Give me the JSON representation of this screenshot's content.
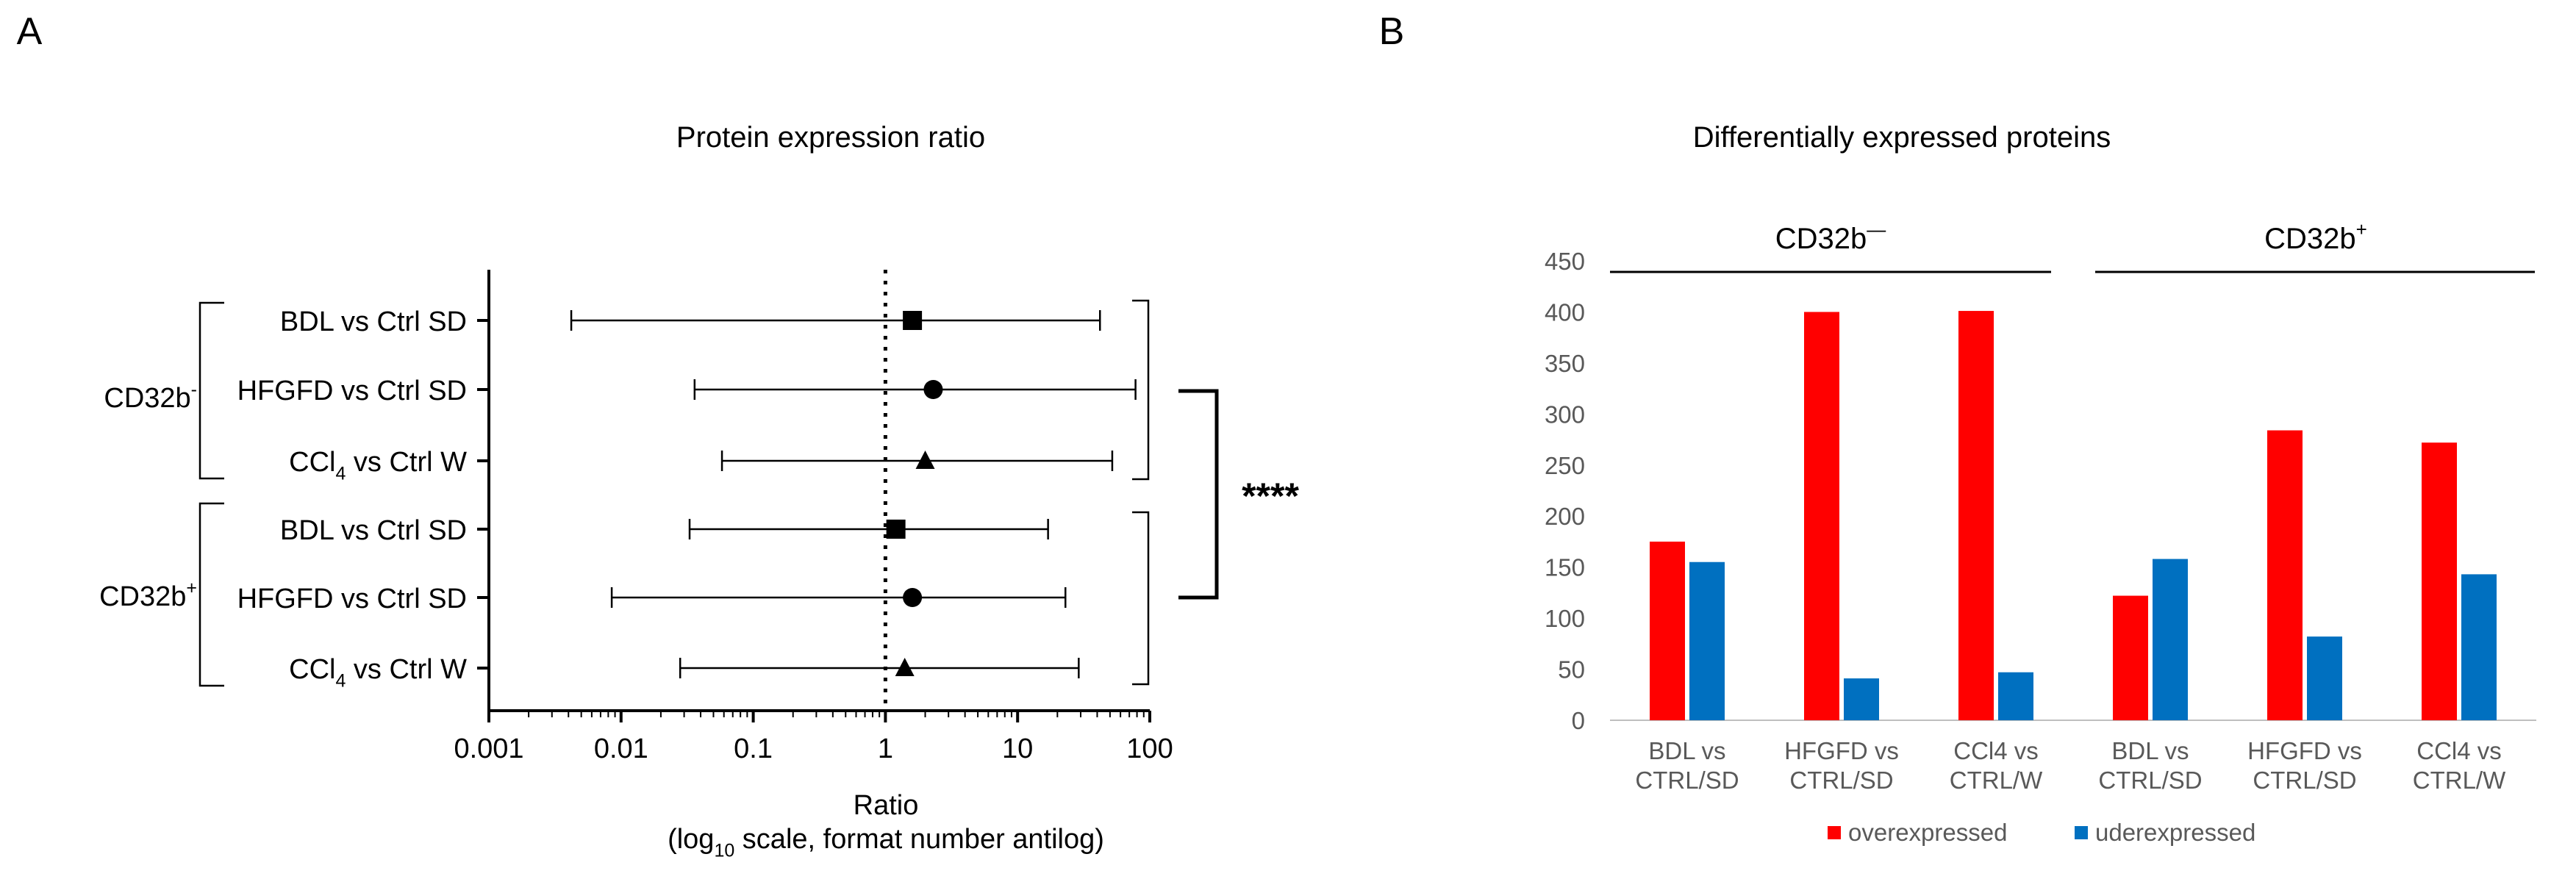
{
  "chart_data": [
    {
      "panel": "A",
      "type": "scatter",
      "title": "Protein expression ratio",
      "xlabel": "Ratio",
      "xlabel_sub_pre": "(log",
      "xlabel_sub_sub": "10",
      "xlabel_sub_post": " scale, format number antilog)",
      "xscale": "log10",
      "xlim": [
        0.001,
        100
      ],
      "xticks": [
        "0.001",
        "0.01",
        "0.1",
        "1",
        "10",
        "100"
      ],
      "reference_line": 1,
      "significance": "****",
      "groups": [
        {
          "name": "CD32b",
          "sup": "-",
          "rows": [
            {
              "label": "BDL vs Ctrl SD",
              "marker": "square",
              "value": 1.6,
              "low": 0.0042,
              "high": 42
            },
            {
              "label": "HFGFD vs Ctrl SD",
              "marker": "circle",
              "value": 2.3,
              "low": 0.036,
              "high": 78
            },
            {
              "label_pre": "CCl",
              "label_sub": "4",
              "label_post": " vs Ctrl W",
              "marker": "triangle",
              "value": 2.0,
              "low": 0.058,
              "high": 52
            }
          ]
        },
        {
          "name": "CD32b",
          "sup": "+",
          "rows": [
            {
              "label": "BDL vs Ctrl SD",
              "marker": "square",
              "value": 1.2,
              "low": 0.033,
              "high": 17
            },
            {
              "label": "HFGFD vs Ctrl SD",
              "marker": "circle",
              "value": 1.6,
              "low": 0.0085,
              "high": 23
            },
            {
              "label_pre": "CCl",
              "label_sub": "4",
              "label_post": " vs Ctrl W",
              "marker": "triangle",
              "value": 1.4,
              "low": 0.028,
              "high": 29
            }
          ]
        }
      ]
    },
    {
      "panel": "B",
      "type": "bar",
      "title": "Differentially expressed proteins",
      "ylim": [
        0,
        450
      ],
      "yticks": [
        0,
        50,
        100,
        150,
        200,
        250,
        300,
        350,
        400,
        450
      ],
      "group_labels": [
        {
          "name": "CD32b",
          "sup": "—"
        },
        {
          "name": "CD32b",
          "sup": "+"
        }
      ],
      "categories": [
        [
          "BDL vs",
          "CTRL/SD"
        ],
        [
          "HFGFD vs",
          "CTRL/SD"
        ],
        [
          "CCl4 vs",
          "CTRL/W"
        ],
        [
          "BDL vs",
          "CTRL/SD"
        ],
        [
          "HFGFD vs",
          "CTRL/SD"
        ],
        [
          "CCl4 vs",
          "CTRL/W"
        ]
      ],
      "series": [
        {
          "name": "overexpressed",
          "color": "#ff0000",
          "values": [
            175,
            400,
            401,
            122,
            284,
            272
          ]
        },
        {
          "name": "uderexpressed",
          "color": "#0070c0",
          "values": [
            155,
            41,
            47,
            158,
            82,
            143
          ]
        }
      ],
      "legend": "bottom"
    }
  ],
  "panel_labels": [
    "A",
    "B"
  ]
}
